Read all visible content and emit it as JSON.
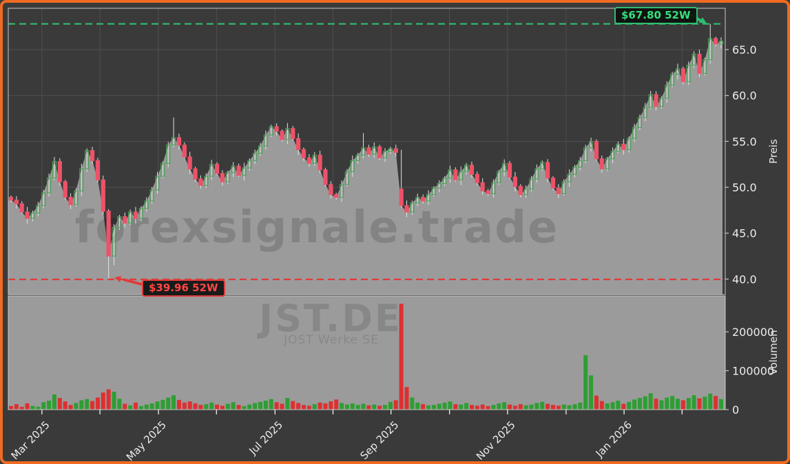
{
  "chart_data": {
    "type": "candlestick",
    "title_watermark": "forexsignale.trade",
    "symbol_watermark": "JST.DE",
    "company_watermark": "JOST Werke SE",
    "price_axis": {
      "label": "Preis",
      "ticks": [
        40,
        45,
        50,
        55,
        60,
        65
      ],
      "tick_labels": [
        "40.0",
        "45.0",
        "50.0",
        "55.0",
        "60.0",
        "65.0"
      ],
      "range": [
        38.3,
        69.5
      ]
    },
    "volume_axis": {
      "label": "Volumen",
      "ticks": [
        0,
        100000,
        200000
      ],
      "tick_labels": [
        "0",
        "100000",
        "200000"
      ],
      "range": [
        0,
        292000
      ]
    },
    "x_axis": {
      "ticks": [
        {
          "label": "Mar 2025",
          "i": 5.7
        },
        {
          "label": "",
          "i": 16.4
        },
        {
          "label": "May 2025",
          "i": 27.2
        },
        {
          "label": "",
          "i": 37.9
        },
        {
          "label": "Jul 2025",
          "i": 48.7
        },
        {
          "label": "",
          "i": 59.4
        },
        {
          "label": "Sep 2025",
          "i": 70.1
        },
        {
          "label": "",
          "i": 80.9
        },
        {
          "label": "Nov 2025",
          "i": 91.6
        },
        {
          "label": "",
          "i": 102.4
        },
        {
          "label": "Jan 2026",
          "i": 113.1
        },
        {
          "label": "",
          "i": 123.8
        }
      ]
    },
    "annotations": {
      "high": {
        "text": "$67.80 52W",
        "value": 67.8
      },
      "low": {
        "text": "$39.96 52W",
        "value": 39.96
      }
    },
    "candles": {
      "open_rule": "previous_close",
      "first_open": 48.9,
      "close": [
        48.6,
        48.2,
        47.3,
        46.6,
        47.2,
        48.0,
        49.4,
        51.0,
        52.8,
        50.6,
        48.9,
        48.1,
        49.6,
        52.0,
        54.0,
        52.9,
        50.8,
        47.4,
        42.5,
        45.6,
        46.8,
        46.1,
        47.3,
        46.6,
        47.7,
        48.5,
        49.7,
        51.2,
        52.6,
        54.6,
        55.4,
        54.6,
        53.3,
        52.0,
        50.9,
        50.2,
        51.2,
        52.5,
        51.5,
        50.6,
        51.6,
        52.3,
        51.3,
        52.1,
        52.9,
        53.7,
        54.5,
        55.7,
        56.6,
        56.1,
        55.2,
        56.4,
        55.3,
        54.1,
        53.2,
        52.6,
        53.5,
        51.9,
        50.3,
        49.2,
        48.9,
        50.3,
        51.7,
        52.9,
        53.5,
        54.3,
        53.6,
        54.4,
        53.2,
        53.9,
        54.2,
        53.8,
        48.0,
        47.3,
        48.3,
        48.9,
        48.5,
        49.2,
        49.9,
        50.4,
        51.0,
        51.9,
        50.8,
        51.7,
        52.4,
        51.4,
        50.5,
        49.6,
        49.3,
        50.5,
        51.7,
        52.6,
        51.1,
        50.1,
        49.2,
        49.8,
        50.9,
        52.0,
        52.7,
        51.0,
        49.9,
        49.3,
        50.6,
        51.4,
        52.2,
        52.9,
        54.3,
        55.0,
        53.1,
        52.0,
        53.1,
        53.9,
        54.7,
        54.1,
        55.3,
        56.5,
        57.6,
        58.7,
        60.1,
        58.8,
        59.7,
        61.1,
        62.3,
        62.9,
        61.5,
        63.3,
        64.5,
        62.4,
        63.9,
        66.2,
        65.6,
        65.9
      ],
      "volume": [
        9000,
        14000,
        7000,
        16000,
        9500,
        7500,
        19000,
        23000,
        39000,
        30000,
        21000,
        12000,
        17000,
        24000,
        27000,
        22000,
        31000,
        44000,
        52000,
        46000,
        28000,
        15000,
        11000,
        18000,
        9000,
        13000,
        16000,
        21000,
        25000,
        31000,
        37000,
        25000,
        18000,
        21000,
        16000,
        12000,
        14000,
        18000,
        13000,
        10000,
        15000,
        19000,
        12000,
        9000,
        13000,
        17000,
        20000,
        23000,
        27000,
        19000,
        15000,
        30000,
        22000,
        17000,
        12000,
        10000,
        14000,
        18000,
        16000,
        21000,
        26000,
        17000,
        13000,
        16000,
        12000,
        15000,
        11000,
        13000,
        10000,
        12000,
        20000,
        24000,
        272000,
        58000,
        31000,
        18000,
        14000,
        11000,
        12000,
        15000,
        18000,
        21000,
        14000,
        13000,
        17000,
        12000,
        10000,
        13000,
        9000,
        12000,
        16000,
        19000,
        13000,
        10000,
        14000,
        11000,
        13000,
        17000,
        20000,
        15000,
        12000,
        10000,
        13000,
        11000,
        14000,
        18000,
        140000,
        88000,
        36000,
        22000,
        16000,
        19000,
        23000,
        15000,
        20000,
        26000,
        30000,
        34000,
        42000,
        28000,
        24000,
        31000,
        35000,
        28000,
        24000,
        30000,
        37000,
        29000,
        33000,
        41000,
        35000,
        27000
      ],
      "overrides": {
        "8": {
          "high": 53.3
        },
        "18": {
          "low": 39.96
        },
        "19": {
          "low": 41.5
        },
        "30": {
          "high": 57.6
        },
        "51": {
          "high": 57.0
        },
        "65": {
          "high": 55.9
        },
        "72": {
          "open": 49.8
        },
        "107": {
          "high": 55.4
        },
        "118": {
          "high": 60.5
        },
        "129": {
          "high": 67.8
        }
      },
      "wick_pattern": [
        0.25,
        0.55,
        0.35,
        0.7,
        0.3,
        0.5,
        0.4,
        0.6,
        0.28,
        0.45
      ]
    },
    "colors": {
      "figure_bg": "#3a3a3a",
      "grid": "#4e504e",
      "spine": "#c8c8c8",
      "area_fill": "#9b9b9b",
      "candle_up": "#4aa557",
      "candle_down": "#ee5268",
      "wick": "#e4e4e4",
      "volume_up": "#2e9e33",
      "volume_down": "#dd3030",
      "high_line": "#2fbf71",
      "high_text": "#35e07c",
      "low_line": "#e23b3b",
      "low_text": "#ff4747",
      "tick_text": "#ececec",
      "border": "#f06a21"
    }
  }
}
